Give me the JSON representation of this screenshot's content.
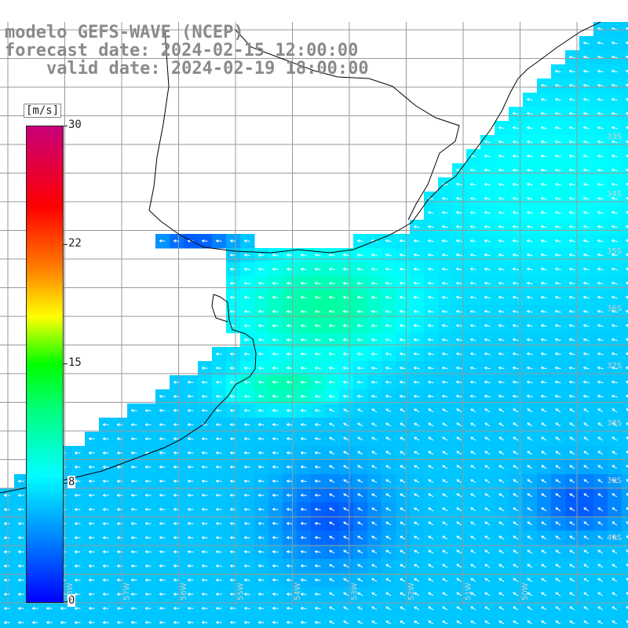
{
  "header": {
    "line1": "modelo GEFS-WAVE (NCEP)",
    "line2": "forecast date: 2024-02-15 12:00:00",
    "line3": "    valid date: 2024-02-19 18:00:00"
  },
  "colorbar": {
    "unit": "[m/s]",
    "ticks": [
      "30",
      "22",
      "15",
      "8",
      "0"
    ],
    "tick_values": [
      30,
      22,
      15,
      8,
      0
    ],
    "min": 0,
    "max": 30,
    "colors": [
      "#0000ff",
      "#0080ff",
      "#00ffff",
      "#00ff80",
      "#00ff00",
      "#ffff00",
      "#ff8000",
      "#ff0000",
      "#c8007a"
    ]
  },
  "latitude_labels": [
    "33S",
    "34S",
    "35S",
    "36S",
    "37S",
    "38S",
    "39S",
    "40S"
  ],
  "longitude_labels": [
    "58W",
    "57W",
    "56W",
    "55W",
    "54W",
    "53W",
    "52W",
    "51W",
    "50W"
  ],
  "field": {
    "variable": "wind speed",
    "units": "m/s",
    "land_color": "#ffffff",
    "grid_color": "#999999",
    "arrow_color": "#ffffff",
    "coast_color": "#000000",
    "prevailing_direction": "from east to west (arrows pointing west/south-west)"
  }
}
